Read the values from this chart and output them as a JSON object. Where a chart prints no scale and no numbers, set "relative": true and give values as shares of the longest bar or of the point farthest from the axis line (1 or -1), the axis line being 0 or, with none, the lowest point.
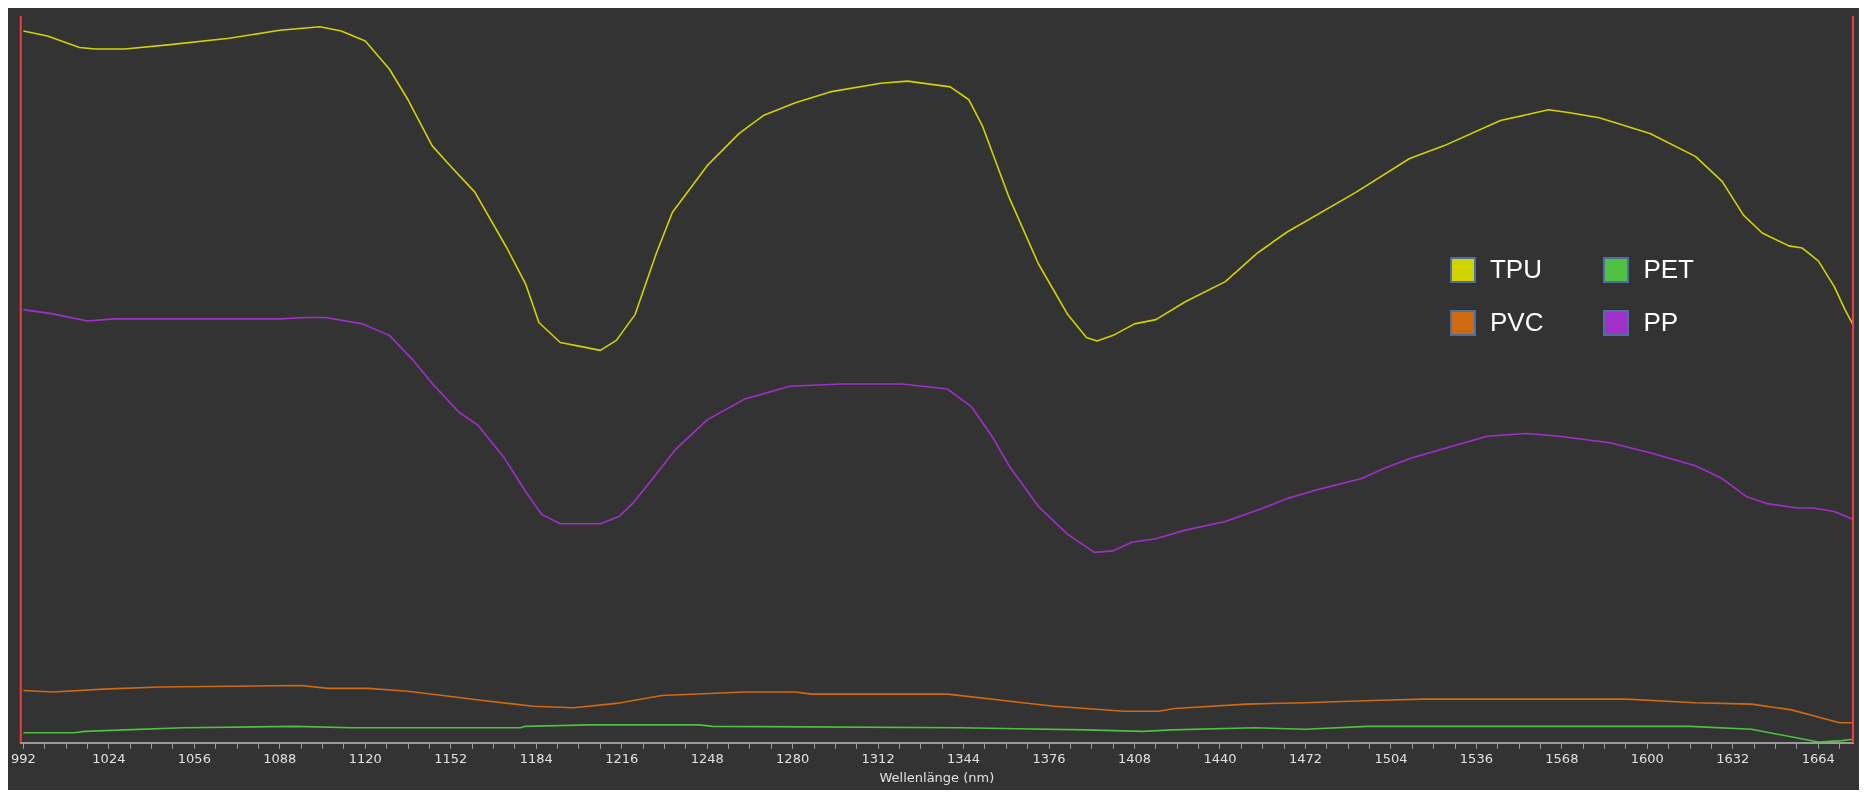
{
  "chart_data": {
    "type": "line",
    "xlabel": "Wellenlänge (nm)",
    "relative": true,
    "xlim": [
      991,
      1677
    ],
    "xticks": [
      992,
      {
        "value": 1000,
        "label": null
      },
      {
        "value": 1008,
        "label": null
      },
      {
        "value": 1016,
        "label": null
      },
      1024,
      {
        "value": 1032,
        "label": null
      },
      {
        "value": 1040,
        "label": null
      },
      {
        "value": 1048,
        "label": null
      },
      1056,
      {
        "value": 1064,
        "label": null
      },
      {
        "value": 1072,
        "label": null
      },
      {
        "value": 1080,
        "label": null
      },
      1088,
      {
        "value": 1096,
        "label": null
      },
      {
        "value": 1104,
        "label": null
      },
      {
        "value": 1112,
        "label": null
      },
      1120,
      {
        "value": 1128,
        "label": null
      },
      {
        "value": 1136,
        "label": null
      },
      {
        "value": 1144,
        "label": null
      },
      1152,
      {
        "value": 1160,
        "label": null
      },
      {
        "value": 1168,
        "label": null
      },
      {
        "value": 1176,
        "label": null
      },
      1184,
      {
        "value": 1192,
        "label": null
      },
      {
        "value": 1200,
        "label": null
      },
      {
        "value": 1208,
        "label": null
      },
      1216,
      {
        "value": 1224,
        "label": null
      },
      {
        "value": 1232,
        "label": null
      },
      {
        "value": 1240,
        "label": null
      },
      1248,
      {
        "value": 1256,
        "label": null
      },
      {
        "value": 1264,
        "label": null
      },
      {
        "value": 1272,
        "label": null
      },
      1280,
      {
        "value": 1288,
        "label": null
      },
      {
        "value": 1296,
        "label": null
      },
      {
        "value": 1304,
        "label": null
      },
      1312,
      {
        "value": 1320,
        "label": null
      },
      {
        "value": 1328,
        "label": null
      },
      {
        "value": 1336,
        "label": null
      },
      1344,
      {
        "value": 1352,
        "label": null
      },
      {
        "value": 1360,
        "label": null
      },
      {
        "value": 1368,
        "label": null
      },
      1376,
      {
        "value": 1384,
        "label": null
      },
      {
        "value": 1392,
        "label": null
      },
      {
        "value": 1400,
        "label": null
      },
      1408,
      {
        "value": 1416,
        "label": null
      },
      {
        "value": 1424,
        "label": null
      },
      {
        "value": 1432,
        "label": null
      },
      1440,
      {
        "value": 1448,
        "label": null
      },
      {
        "value": 1456,
        "label": null
      },
      {
        "value": 1464,
        "label": null
      },
      1472,
      {
        "value": 1480,
        "label": null
      },
      {
        "value": 1488,
        "label": null
      },
      {
        "value": 1496,
        "label": null
      },
      1504,
      {
        "value": 1512,
        "label": null
      },
      {
        "value": 1520,
        "label": null
      },
      {
        "value": 1528,
        "label": null
      },
      1536,
      {
        "value": 1544,
        "label": null
      },
      {
        "value": 1552,
        "label": null
      },
      {
        "value": 1560,
        "label": null
      },
      1568,
      {
        "value": 1576,
        "label": null
      },
      {
        "value": 1584,
        "label": null
      },
      {
        "value": 1592,
        "label": null
      },
      1600,
      {
        "value": 1608,
        "label": null
      },
      {
        "value": 1616,
        "label": null
      },
      {
        "value": 1624,
        "label": null
      },
      1632,
      {
        "value": 1640,
        "label": null
      },
      {
        "value": 1648,
        "label": null
      },
      {
        "value": 1656,
        "label": null
      },
      1664,
      {
        "value": 1672,
        "label": null
      }
    ],
    "grid": false,
    "legend": "right",
    "marker": "none",
    "line_style": "solid",
    "ref_lines": [
      {
        "axis": "x",
        "value": 991,
        "label": null,
        "color": "#e84040"
      },
      {
        "axis": "x",
        "value": 1677,
        "label": null,
        "color": "#e84040"
      }
    ],
    "series": [
      {
        "name": "TPU",
        "color": "#d2d200",
        "x": [
          992,
          1001,
          1013,
          1019,
          1030,
          1047,
          1069,
          1088,
          1103,
          1111,
          1120,
          1129,
          1136,
          1145,
          1151,
          1161,
          1173,
          1180,
          1185,
          1193,
          1200,
          1208,
          1214,
          1221,
          1229,
          1235,
          1248,
          1260,
          1269,
          1281,
          1294,
          1313,
          1323,
          1339,
          1346,
          1351,
          1361,
          1372,
          1383,
          1390,
          1394,
          1400,
          1408,
          1416,
          1427,
          1442,
          1454,
          1465,
          1491,
          1511,
          1524,
          1545,
          1563,
          1571,
          1582,
          1601,
          1618,
          1628,
          1636,
          1643,
          1653,
          1658,
          1664,
          1670,
          1674,
          1677
        ],
        "values": [
          0.994,
          0.987,
          0.971,
          0.969,
          0.969,
          0.975,
          0.984,
          0.995,
          1,
          0.994,
          0.98,
          0.941,
          0.898,
          0.834,
          0.809,
          0.769,
          0.691,
          0.641,
          0.587,
          0.559,
          0.554,
          0.548,
          0.562,
          0.598,
          0.684,
          0.741,
          0.806,
          0.851,
          0.876,
          0.894,
          0.909,
          0.921,
          0.924,
          0.916,
          0.898,
          0.862,
          0.762,
          0.669,
          0.598,
          0.566,
          0.561,
          0.569,
          0.585,
          0.591,
          0.616,
          0.644,
          0.684,
          0.713,
          0.769,
          0.816,
          0.834,
          0.869,
          0.884,
          0.88,
          0.873,
          0.851,
          0.819,
          0.784,
          0.737,
          0.712,
          0.694,
          0.691,
          0.673,
          0.637,
          0.605,
          0.584
        ]
      },
      {
        "name": "PVC",
        "color": "#d06a10",
        "x": [
          992,
          1003,
          1022,
          1043,
          1096,
          1106,
          1121,
          1136,
          1149,
          1164,
          1183,
          1198,
          1214,
          1231,
          1262,
          1281,
          1287,
          1338,
          1359,
          1378,
          1404,
          1417,
          1423,
          1450,
          1472,
          1497,
          1516,
          1540,
          1592,
          1618,
          1639,
          1654,
          1666,
          1672,
          1677
        ],
        "values": [
          0.073,
          0.071,
          0.075,
          0.078,
          0.08,
          0.076,
          0.076,
          0.072,
          0.066,
          0.059,
          0.051,
          0.049,
          0.055,
          0.066,
          0.071,
          0.071,
          0.068,
          0.068,
          0.059,
          0.051,
          0.044,
          0.044,
          0.048,
          0.054,
          0.056,
          0.059,
          0.061,
          0.061,
          0.061,
          0.056,
          0.054,
          0.046,
          0.034,
          0.028,
          0.028
        ]
      },
      {
        "name": "PET",
        "color": "#50c040",
        "x": [
          992,
          1011,
          1015,
          1030,
          1052,
          1094,
          1115,
          1178,
          1180,
          1204,
          1245,
          1250,
          1343,
          1390,
          1411,
          1422,
          1453,
          1472,
          1495,
          1616,
          1639,
          1664,
          1673,
          1677
        ],
        "values": [
          0.014,
          0.014,
          0.016,
          0.018,
          0.021,
          0.023,
          0.021,
          0.021,
          0.023,
          0.025,
          0.025,
          0.023,
          0.021,
          0.018,
          0.016,
          0.018,
          0.021,
          0.019,
          0.023,
          0.023,
          0.019,
          0.001,
          0.003,
          0.005
        ]
      },
      {
        "name": "PP",
        "color": "#a030c8",
        "x": [
          992,
          1003,
          1016,
          1026,
          1088,
          1098,
          1105,
          1119,
          1129,
          1138,
          1145,
          1155,
          1162,
          1172,
          1180,
          1186,
          1193,
          1208,
          1215,
          1220,
          1227,
          1236,
          1248,
          1262,
          1279,
          1298,
          1321,
          1338,
          1347,
          1355,
          1361,
          1372,
          1383,
          1393,
          1400,
          1407,
          1416,
          1427,
          1442,
          1455,
          1465,
          1478,
          1493,
          1502,
          1512,
          1525,
          1540,
          1555,
          1567,
          1586,
          1601,
          1618,
          1628,
          1637,
          1645,
          1656,
          1662,
          1670,
          1677
        ],
        "values": [
          0.605,
          0.599,
          0.589,
          0.592,
          0.592,
          0.594,
          0.594,
          0.585,
          0.569,
          0.534,
          0.502,
          0.462,
          0.444,
          0.398,
          0.351,
          0.319,
          0.306,
          0.306,
          0.316,
          0.334,
          0.366,
          0.409,
          0.451,
          0.48,
          0.498,
          0.501,
          0.501,
          0.494,
          0.469,
          0.426,
          0.387,
          0.33,
          0.291,
          0.266,
          0.268,
          0.28,
          0.285,
          0.297,
          0.309,
          0.326,
          0.341,
          0.355,
          0.369,
          0.384,
          0.398,
          0.412,
          0.428,
          0.432,
          0.428,
          0.419,
          0.405,
          0.387,
          0.369,
          0.344,
          0.334,
          0.328,
          0.328,
          0.323,
          0.312
        ]
      }
    ]
  }
}
